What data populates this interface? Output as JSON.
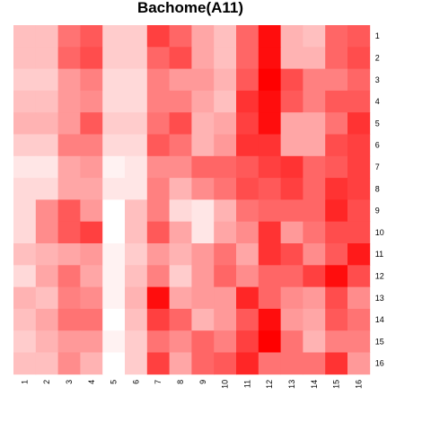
{
  "chart_data": {
    "type": "heatmap",
    "title": "Bachome(A11)",
    "x_labels": [
      "1",
      "2",
      "3",
      "4",
      "5",
      "6",
      "7",
      "8",
      "9",
      "10",
      "11",
      "12",
      "13",
      "14",
      "15",
      "16"
    ],
    "y_labels": [
      "1",
      "2",
      "3",
      "4",
      "5",
      "6",
      "7",
      "8",
      "9",
      "10",
      "11",
      "12",
      "13",
      "14",
      "15",
      "16"
    ],
    "value_range": [
      0,
      1
    ],
    "color_low": "#ffffff",
    "color_high": "#ff0000",
    "values": [
      [
        0.25,
        0.25,
        0.55,
        0.65,
        0.2,
        0.2,
        0.75,
        0.6,
        0.35,
        0.25,
        0.6,
        0.95,
        0.3,
        0.25,
        0.6,
        0.65
      ],
      [
        0.25,
        0.25,
        0.6,
        0.7,
        0.2,
        0.2,
        0.6,
        0.7,
        0.35,
        0.25,
        0.6,
        0.95,
        0.3,
        0.3,
        0.6,
        0.7
      ],
      [
        0.2,
        0.2,
        0.4,
        0.5,
        0.15,
        0.15,
        0.5,
        0.4,
        0.4,
        0.3,
        0.65,
        1.0,
        0.7,
        0.5,
        0.5,
        0.6
      ],
      [
        0.25,
        0.25,
        0.4,
        0.45,
        0.15,
        0.15,
        0.5,
        0.5,
        0.35,
        0.25,
        0.8,
        0.95,
        0.65,
        0.5,
        0.65,
        0.65
      ],
      [
        0.3,
        0.3,
        0.4,
        0.65,
        0.2,
        0.2,
        0.55,
        0.7,
        0.3,
        0.35,
        0.75,
        0.95,
        0.35,
        0.35,
        0.55,
        0.8
      ],
      [
        0.2,
        0.2,
        0.5,
        0.5,
        0.15,
        0.15,
        0.65,
        0.55,
        0.3,
        0.4,
        0.8,
        0.8,
        0.35,
        0.35,
        0.7,
        0.75
      ],
      [
        0.1,
        0.1,
        0.35,
        0.4,
        0.05,
        0.1,
        0.45,
        0.45,
        0.6,
        0.6,
        0.65,
        0.75,
        0.8,
        0.6,
        0.65,
        0.75
      ],
      [
        0.15,
        0.15,
        0.35,
        0.35,
        0.1,
        0.1,
        0.5,
        0.3,
        0.45,
        0.55,
        0.7,
        0.65,
        0.75,
        0.6,
        0.8,
        0.75
      ],
      [
        0.15,
        0.45,
        0.65,
        0.4,
        0.0,
        0.25,
        0.5,
        0.15,
        0.1,
        0.3,
        0.55,
        0.6,
        0.6,
        0.6,
        0.85,
        0.7
      ],
      [
        0.15,
        0.45,
        0.65,
        0.75,
        0.0,
        0.25,
        0.65,
        0.35,
        0.1,
        0.35,
        0.45,
        0.8,
        0.4,
        0.55,
        0.7,
        0.7
      ],
      [
        0.25,
        0.3,
        0.35,
        0.4,
        0.05,
        0.2,
        0.4,
        0.3,
        0.4,
        0.55,
        0.35,
        0.8,
        0.7,
        0.45,
        0.65,
        0.9
      ],
      [
        0.15,
        0.35,
        0.55,
        0.35,
        0.05,
        0.25,
        0.5,
        0.2,
        0.4,
        0.6,
        0.45,
        0.6,
        0.6,
        0.75,
        0.95,
        0.7
      ],
      [
        0.3,
        0.25,
        0.5,
        0.45,
        0.05,
        0.3,
        0.95,
        0.35,
        0.4,
        0.4,
        0.85,
        0.6,
        0.45,
        0.4,
        0.7,
        0.45
      ],
      [
        0.25,
        0.35,
        0.55,
        0.55,
        0.0,
        0.25,
        0.75,
        0.6,
        0.3,
        0.4,
        0.65,
        0.95,
        0.4,
        0.35,
        0.65,
        0.55
      ],
      [
        0.2,
        0.3,
        0.4,
        0.4,
        0.05,
        0.2,
        0.55,
        0.45,
        0.6,
        0.5,
        0.75,
        1.0,
        0.55,
        0.3,
        0.5,
        0.5
      ],
      [
        0.25,
        0.25,
        0.45,
        0.3,
        0.0,
        0.2,
        0.75,
        0.35,
        0.6,
        0.65,
        0.85,
        0.55,
        0.55,
        0.55,
        0.8,
        0.4
      ]
    ]
  }
}
